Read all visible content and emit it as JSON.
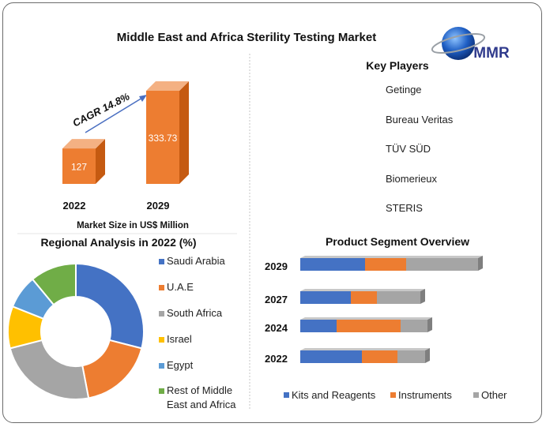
{
  "title": "Middle East and Africa Sterility Testing Market",
  "logo_text": "MMR",
  "growth_chart": {
    "cagr_label": "CAGR 14.8%",
    "bars": [
      {
        "year": "2022",
        "value": 127,
        "label": "127"
      },
      {
        "year": "2029",
        "value": 333.73,
        "label": "333.73"
      }
    ],
    "xlabel": "Market Size in US$ Million",
    "colors": {
      "front": "#ED7D31",
      "side": "#C55A11",
      "top": "#F4B183"
    }
  },
  "key_players": {
    "heading": "Key Players",
    "items": [
      "Getinge",
      "Bureau Veritas",
      "TÜV SÜD",
      "Biomerieux",
      "STERIS"
    ]
  },
  "chart_data": [
    {
      "type": "pie",
      "title": "Regional Analysis in 2022 (%)",
      "donut": true,
      "legend_position": "right",
      "labels": [
        "Saudi Arabia",
        "U.A.E",
        "South Africa",
        "Israel",
        "Egypt",
        "Rest of Middle East and Africa"
      ],
      "values": [
        29,
        18,
        24,
        10,
        8,
        11
      ],
      "colors": [
        "#4472C4",
        "#ED7D31",
        "#A5A5A5",
        "#FFC000",
        "#5B9BD5",
        "#70AD47"
      ]
    },
    {
      "type": "bar",
      "orientation": "horizontal",
      "stacked": true,
      "title": "Product Segment Overview",
      "legend_position": "bottom",
      "categories": [
        "2029",
        "2027",
        "2024",
        "2022"
      ],
      "series": [
        {
          "name": "Kits and Reagents",
          "color": "#4472C4",
          "values": [
            82,
            64,
            46,
            78
          ]
        },
        {
          "name": "Instruments",
          "color": "#ED7D31",
          "values": [
            52,
            33,
            81,
            45
          ]
        },
        {
          "name": "Other",
          "color": "#A5A5A5",
          "values": [
            91,
            55,
            34,
            35
          ]
        }
      ]
    }
  ]
}
